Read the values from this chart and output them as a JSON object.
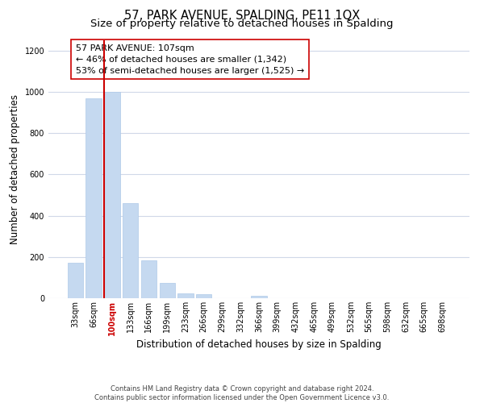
{
  "title": "57, PARK AVENUE, SPALDING, PE11 1QX",
  "subtitle": "Size of property relative to detached houses in Spalding",
  "xlabel": "Distribution of detached houses by size in Spalding",
  "ylabel": "Number of detached properties",
  "bins": [
    "33sqm",
    "66sqm",
    "100sqm",
    "133sqm",
    "166sqm",
    "199sqm",
    "233sqm",
    "266sqm",
    "299sqm",
    "332sqm",
    "366sqm",
    "399sqm",
    "432sqm",
    "465sqm",
    "499sqm",
    "532sqm",
    "565sqm",
    "598sqm",
    "632sqm",
    "665sqm",
    "698sqm"
  ],
  "bar_heights": [
    170,
    970,
    1000,
    460,
    185,
    75,
    22,
    18,
    0,
    0,
    13,
    0,
    0,
    0,
    0,
    0,
    0,
    0,
    0,
    0,
    0
  ],
  "bar_color": "#c5d9f0",
  "bar_edge_color": "#aec9e8",
  "highlight_bin_index": 2,
  "highlight_line_color": "#cc0000",
  "annotation_line1": "57 PARK AVENUE: 107sqm",
  "annotation_line2": "← 46% of detached houses are smaller (1,342)",
  "annotation_line3": "53% of semi-detached houses are larger (1,525) →",
  "ylim": [
    0,
    1250
  ],
  "yticks": [
    0,
    200,
    400,
    600,
    800,
    1000,
    1200
  ],
  "footer_text": "Contains HM Land Registry data © Crown copyright and database right 2024.\nContains public sector information licensed under the Open Government Licence v3.0.",
  "bg_color": "#ffffff",
  "grid_color": "#d0d8e8",
  "title_fontsize": 10.5,
  "subtitle_fontsize": 9.5,
  "axis_label_fontsize": 8.5,
  "tick_fontsize": 7,
  "annotation_fontsize": 8,
  "footer_fontsize": 6
}
